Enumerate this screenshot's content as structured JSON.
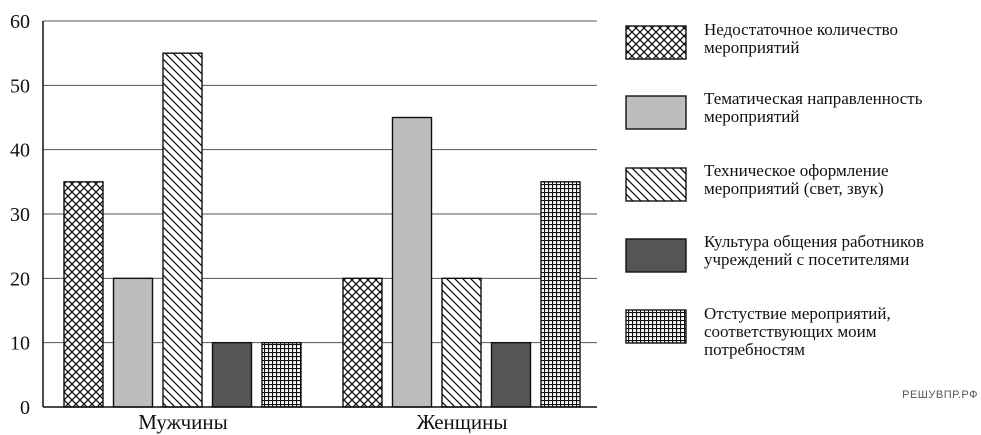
{
  "chart_data": {
    "type": "bar",
    "categories": [
      "Мужчины",
      "Женщины"
    ],
    "series": [
      {
        "name": "Недостаточное количество мероприятий",
        "values": [
          35,
          20
        ],
        "pattern": "crosshatch",
        "color": "#ffffff"
      },
      {
        "name": "Тематическая направленность мероприятий",
        "values": [
          20,
          45
        ],
        "pattern": "solid",
        "color": "#bdbdbd"
      },
      {
        "name": "Техническое оформление мероприятий (свет, звук)",
        "values": [
          55,
          20
        ],
        "pattern": "diagonal",
        "color": "#ffffff"
      },
      {
        "name": "Культура общения работников учреждений с посетителями",
        "values": [
          10,
          10
        ],
        "pattern": "solid",
        "color": "#555555"
      },
      {
        "name": "Отстуствие мероприятий, соответствующих моим потребностям",
        "values": [
          10,
          35
        ],
        "pattern": "grid",
        "color": "#ffffff"
      }
    ],
    "legend_lines": [
      [
        "Недостаточное количество",
        "мероприятий"
      ],
      [
        "Тематическая направленность",
        "мероприятий"
      ],
      [
        "Техническое оформление",
        "мероприятий (свет, звук)"
      ],
      [
        "Культура общения работников",
        "учреждений с посетителями"
      ],
      [
        "Отстуствие мероприятий,",
        "соответствующих моим",
        "потребностям"
      ]
    ],
    "yticks": [
      0,
      10,
      20,
      30,
      40,
      50,
      60
    ],
    "ylim": [
      0,
      60
    ],
    "grid": true,
    "legend_position": "right"
  },
  "watermark": "РЕШУВПР.РФ"
}
